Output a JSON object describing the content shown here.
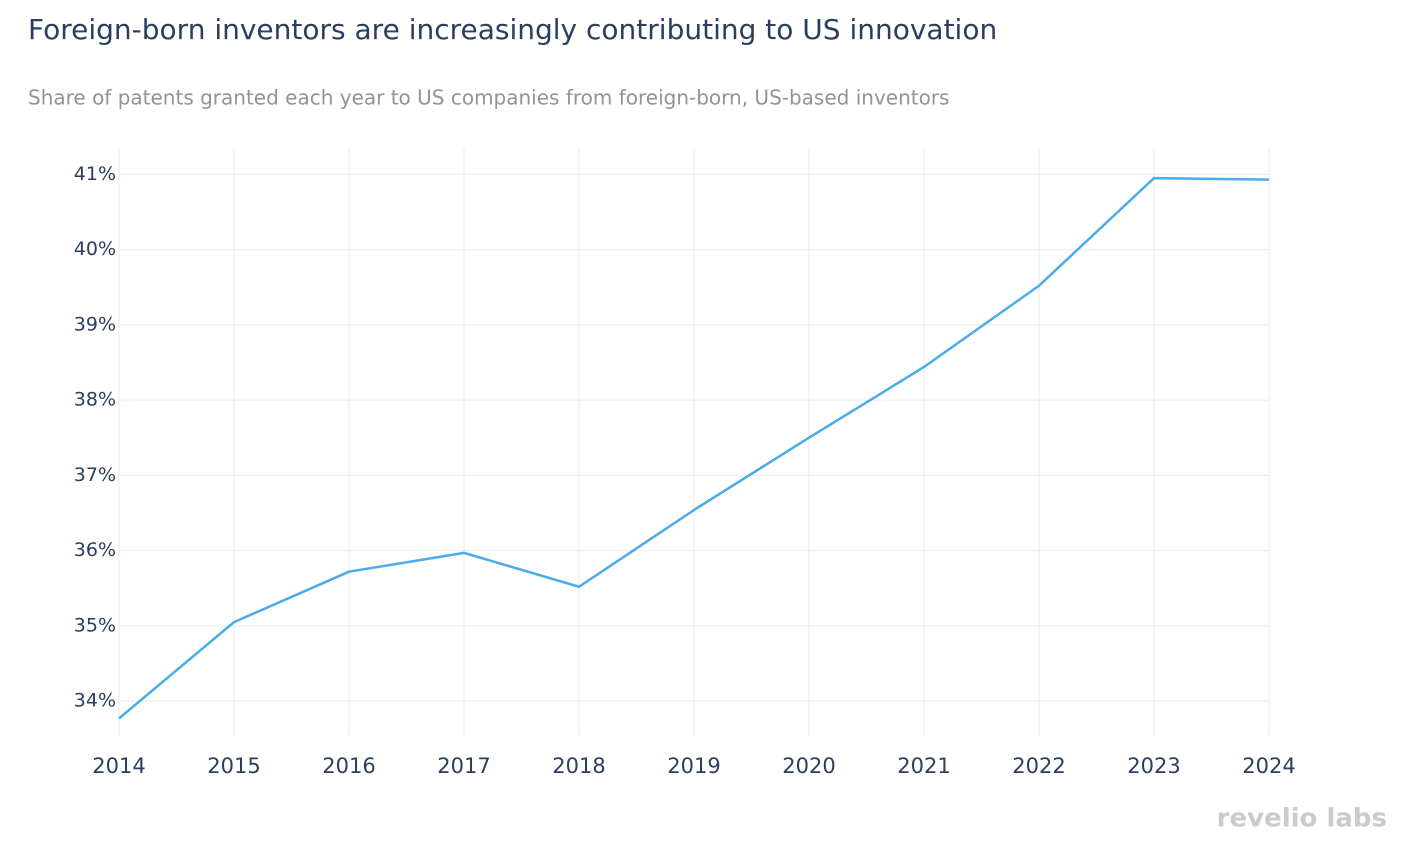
{
  "chart_data": {
    "type": "line",
    "title": "Foreign-born inventors are increasingly contributing to US innovation",
    "subtitle": "Share of patents granted each year to US companies from foreign-born, US-based inventors",
    "x": [
      2014,
      2015,
      2016,
      2017,
      2018,
      2019,
      2020,
      2021,
      2022,
      2023,
      2024
    ],
    "series": [
      {
        "color": "#4aabeb",
        "values": [
          33.77,
          35.05,
          35.72,
          35.97,
          35.52,
          36.54,
          37.5,
          38.44,
          39.52,
          40.95,
          40.93
        ]
      }
    ],
    "xlim": [
      2014,
      2024
    ],
    "xticks": [
      2014,
      2015,
      2016,
      2017,
      2018,
      2019,
      2020,
      2021,
      2022,
      2023,
      2024
    ],
    "ylim": [
      33.55,
      41.35
    ],
    "yticks": [
      {
        "value": 34,
        "label": "34%"
      },
      {
        "value": 35,
        "label": "35%"
      },
      {
        "value": 36,
        "label": "36%"
      },
      {
        "value": 37,
        "label": "37%"
      },
      {
        "value": 38,
        "label": "38%"
      },
      {
        "value": 39,
        "label": "39%"
      },
      {
        "value": 40,
        "label": "40%"
      },
      {
        "value": 41,
        "label": "41%"
      }
    ],
    "grid": true,
    "logo": "revelio labs"
  }
}
